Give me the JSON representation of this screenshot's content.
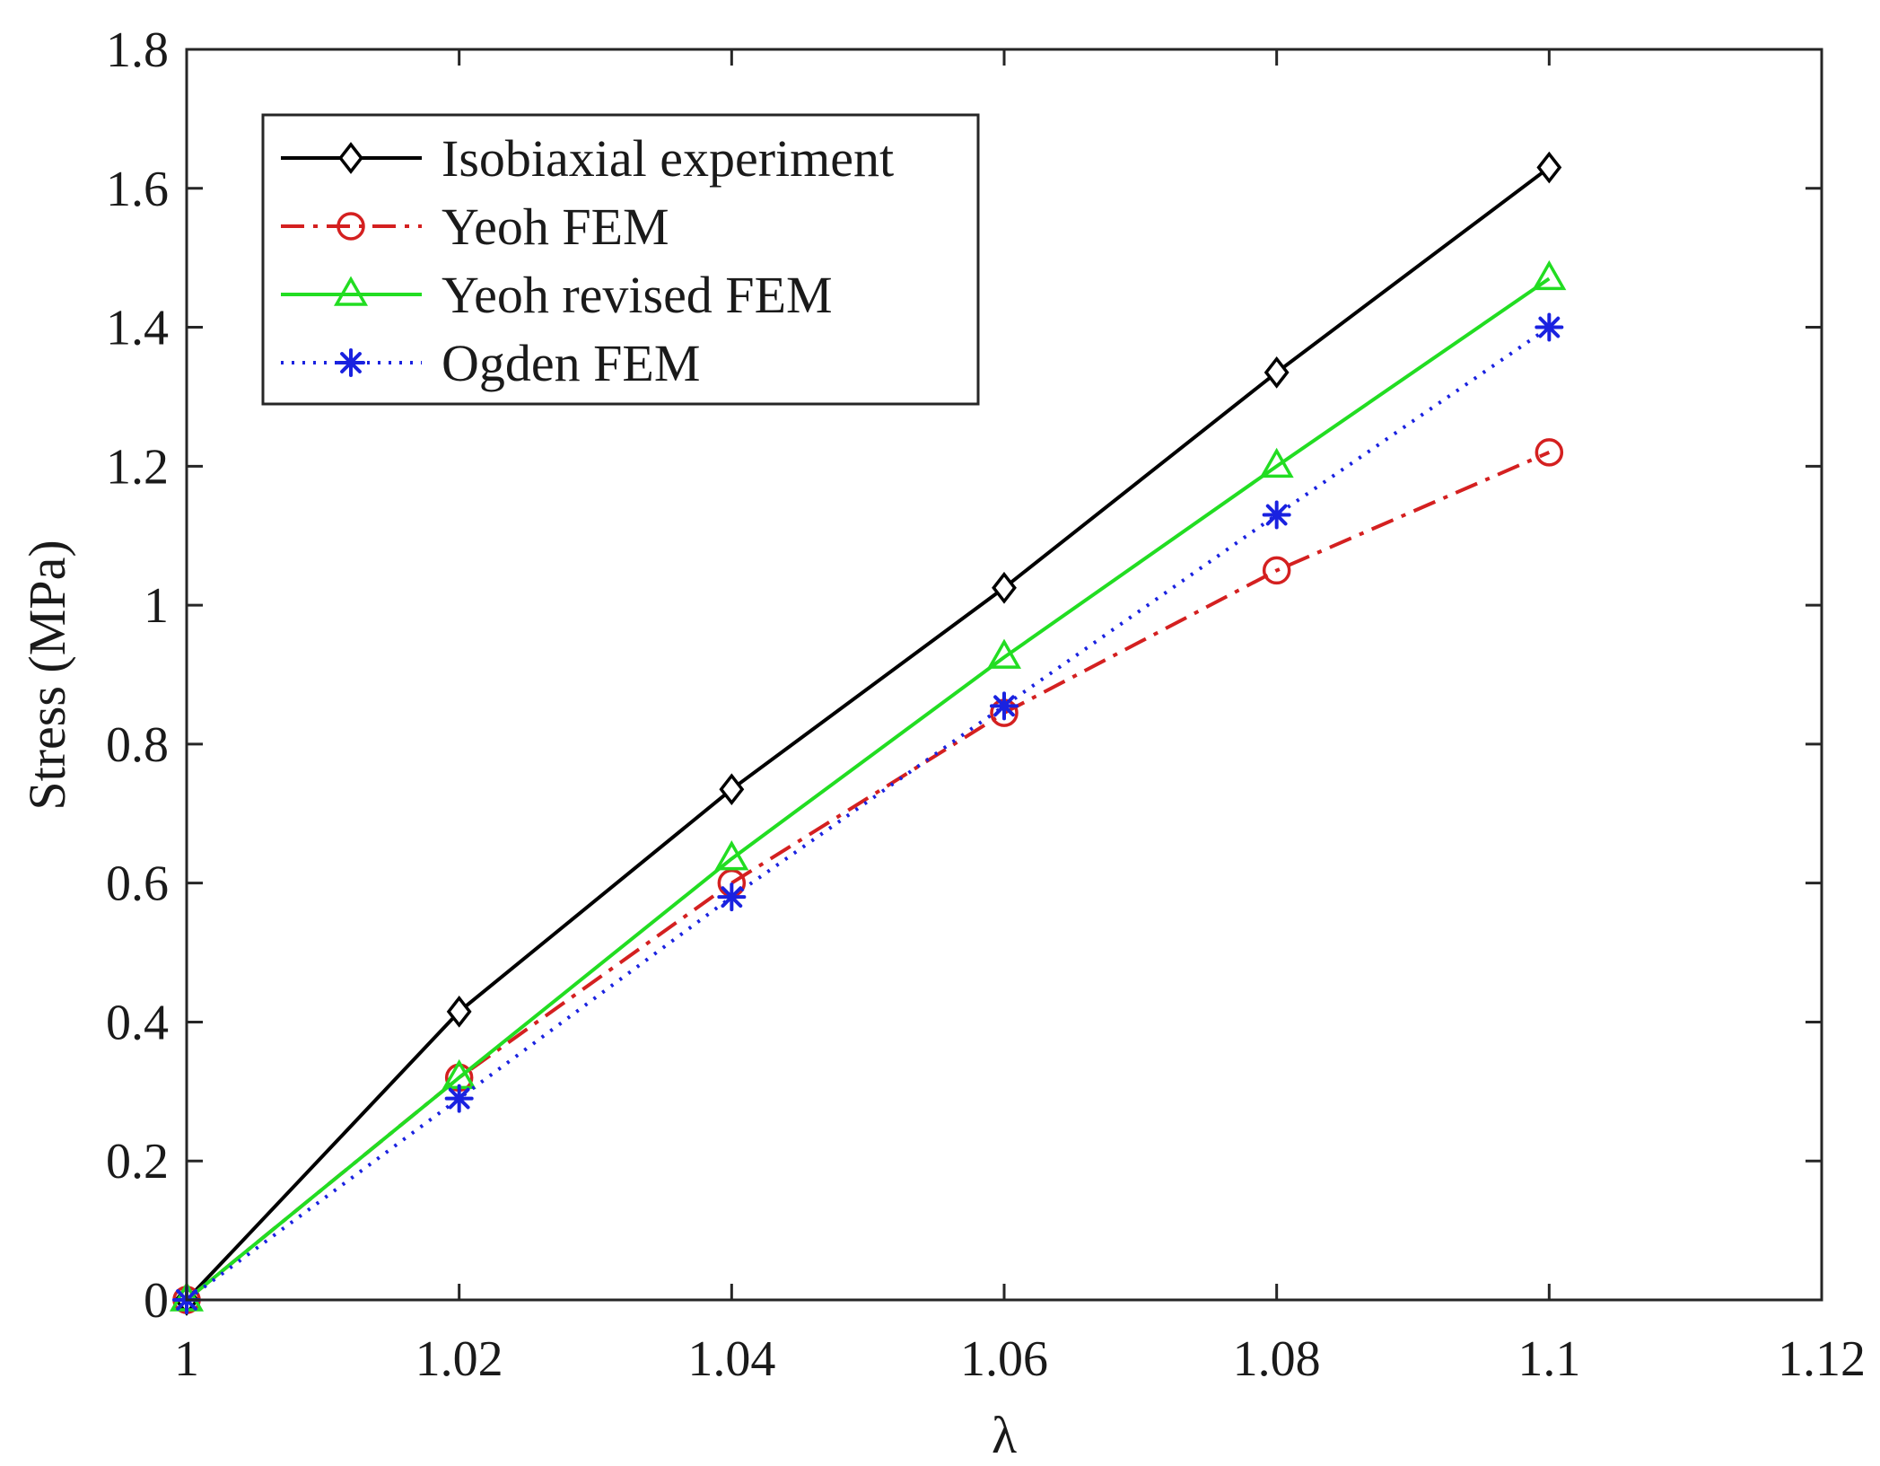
{
  "chart_data": {
    "type": "line",
    "title": "",
    "xlabel": "λ",
    "ylabel": "Stress (MPa)",
    "xlim": [
      1,
      1.12
    ],
    "ylim": [
      0,
      1.8
    ],
    "xticks": [
      1,
      1.02,
      1.04,
      1.06,
      1.08,
      1.1,
      1.12
    ],
    "xtick_labels": [
      "1",
      "1.02",
      "1.04",
      "1.06",
      "1.08",
      "1.1",
      "1.12"
    ],
    "yticks": [
      0,
      0.2,
      0.4,
      0.6,
      0.8,
      1,
      1.2,
      1.4,
      1.6,
      1.8
    ],
    "ytick_labels": [
      "0",
      "0.2",
      "0.4",
      "0.6",
      "0.8",
      "1",
      "1.2",
      "1.4",
      "1.6",
      "1.8"
    ],
    "grid": false,
    "legend_position": "top-left",
    "x": [
      1,
      1.02,
      1.04,
      1.06,
      1.08,
      1.1
    ],
    "series": [
      {
        "name": "Isobiaxial experiment",
        "values": [
          0,
          0.415,
          0.735,
          1.025,
          1.335,
          1.63
        ],
        "color": "#000000",
        "marker": "diamond",
        "dash": ""
      },
      {
        "name": "Yeoh FEM",
        "values": [
          0,
          0.32,
          0.6,
          0.845,
          1.05,
          1.22
        ],
        "color": "#d42020",
        "marker": "circle",
        "dash": "26 10 5 10"
      },
      {
        "name": "Yeoh revised FEM",
        "values": [
          0,
          0.32,
          0.635,
          0.925,
          1.2,
          1.47
        ],
        "color": "#22dd22",
        "marker": "triangle",
        "dash": ""
      },
      {
        "name": "Ogden FEM",
        "values": [
          0,
          0.29,
          0.58,
          0.855,
          1.13,
          1.4
        ],
        "color": "#1a22e0",
        "marker": "asterisk",
        "dash": "3 9"
      }
    ]
  }
}
